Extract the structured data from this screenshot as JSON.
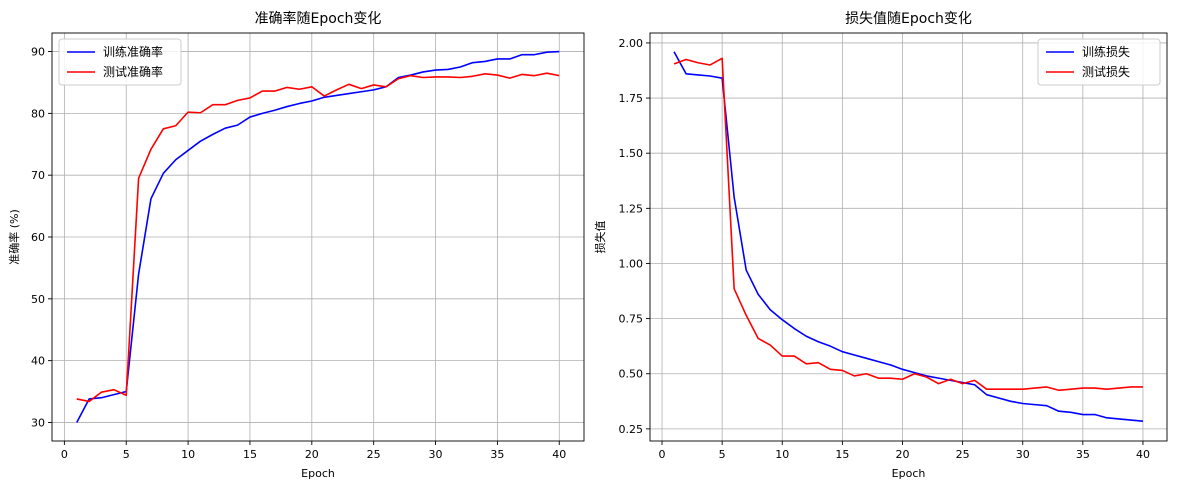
{
  "chart_data": [
    {
      "type": "line",
      "title": "准确率随Epoch变化",
      "xlabel": "Epoch",
      "ylabel": "准确率 (%)",
      "xlim": [
        -1,
        42
      ],
      "ylim": [
        27,
        93
      ],
      "xticks": [
        0,
        5,
        10,
        15,
        20,
        25,
        30,
        35,
        40
      ],
      "yticks": [
        30,
        40,
        50,
        60,
        70,
        80,
        90
      ],
      "grid": true,
      "legend_position": "top-left",
      "series": [
        {
          "name": "训练准确率",
          "color": "#0000ff",
          "x": [
            1,
            2,
            3,
            4,
            5,
            6,
            7,
            8,
            9,
            10,
            11,
            12,
            13,
            14,
            15,
            16,
            17,
            18,
            19,
            20,
            21,
            22,
            23,
            24,
            25,
            26,
            27,
            28,
            29,
            30,
            31,
            32,
            33,
            34,
            35,
            36,
            37,
            38,
            39,
            40
          ],
          "y": [
            30.0,
            33.8,
            34.0,
            34.5,
            35.0,
            54.0,
            66.2,
            70.3,
            72.5,
            74.0,
            75.5,
            76.6,
            77.6,
            78.1,
            79.4,
            80.0,
            80.5,
            81.1,
            81.6,
            82.0,
            82.6,
            82.9,
            83.2,
            83.5,
            83.8,
            84.3,
            85.8,
            86.2,
            86.7,
            87.0,
            87.1,
            87.5,
            88.2,
            88.4,
            88.8,
            88.8,
            89.5,
            89.5,
            89.9,
            90.0
          ]
        },
        {
          "name": "测试准确率",
          "color": "#ff0000",
          "x": [
            1,
            2,
            3,
            4,
            5,
            6,
            7,
            8,
            9,
            10,
            11,
            12,
            13,
            14,
            15,
            16,
            17,
            18,
            19,
            20,
            21,
            22,
            23,
            24,
            25,
            26,
            27,
            28,
            29,
            30,
            31,
            32,
            33,
            34,
            35,
            36,
            37,
            38,
            39,
            40
          ],
          "y": [
            33.8,
            33.4,
            34.9,
            35.3,
            34.4,
            69.5,
            74.2,
            77.5,
            78.0,
            80.2,
            80.1,
            81.4,
            81.4,
            82.1,
            82.5,
            83.6,
            83.6,
            84.2,
            83.9,
            84.3,
            82.8,
            83.8,
            84.7,
            84.0,
            84.6,
            84.3,
            85.6,
            86.1,
            85.8,
            85.9,
            85.9,
            85.8,
            86.0,
            86.4,
            86.2,
            85.7,
            86.3,
            86.1,
            86.5,
            86.1
          ]
        }
      ]
    },
    {
      "type": "line",
      "title": "损失值随Epoch变化",
      "xlabel": "Epoch",
      "ylabel": "损失值",
      "xlim": [
        -1,
        42
      ],
      "ylim": [
        0.195,
        2.045
      ],
      "xticks": [
        0,
        5,
        10,
        15,
        20,
        25,
        30,
        35,
        40
      ],
      "yticks": [
        0.25,
        0.5,
        0.75,
        1.0,
        1.25,
        1.5,
        1.75,
        2.0
      ],
      "ytick_labels": [
        "0.25",
        "0.50",
        "0.75",
        "1.00",
        "1.25",
        "1.50",
        "1.75",
        "2.00"
      ],
      "grid": true,
      "legend_position": "top-right",
      "series": [
        {
          "name": "训练损失",
          "color": "#0000ff",
          "x": [
            1,
            2,
            3,
            4,
            5,
            6,
            7,
            8,
            9,
            10,
            11,
            12,
            13,
            14,
            15,
            16,
            17,
            18,
            19,
            20,
            21,
            22,
            23,
            24,
            25,
            26,
            27,
            28,
            29,
            30,
            31,
            32,
            33,
            34,
            35,
            36,
            37,
            38,
            39,
            40
          ],
          "y": [
            1.96,
            1.86,
            1.855,
            1.85,
            1.84,
            1.3,
            0.97,
            0.86,
            0.79,
            0.745,
            0.705,
            0.67,
            0.645,
            0.625,
            0.6,
            0.585,
            0.57,
            0.555,
            0.54,
            0.52,
            0.505,
            0.49,
            0.48,
            0.47,
            0.46,
            0.45,
            0.405,
            0.39,
            0.375,
            0.365,
            0.36,
            0.355,
            0.33,
            0.325,
            0.315,
            0.315,
            0.3,
            0.295,
            0.29,
            0.285
          ]
        },
        {
          "name": "测试损失",
          "color": "#ff0000",
          "x": [
            1,
            2,
            3,
            4,
            5,
            6,
            7,
            8,
            9,
            10,
            11,
            12,
            13,
            14,
            15,
            16,
            17,
            18,
            19,
            20,
            21,
            22,
            23,
            24,
            25,
            26,
            27,
            28,
            29,
            30,
            31,
            32,
            33,
            34,
            35,
            36,
            37,
            38,
            39,
            40
          ],
          "y": [
            1.905,
            1.925,
            1.91,
            1.9,
            1.93,
            0.885,
            0.765,
            0.66,
            0.63,
            0.58,
            0.58,
            0.545,
            0.55,
            0.52,
            0.515,
            0.49,
            0.5,
            0.48,
            0.48,
            0.475,
            0.5,
            0.485,
            0.455,
            0.475,
            0.455,
            0.47,
            0.43,
            0.43,
            0.43,
            0.43,
            0.435,
            0.44,
            0.425,
            0.43,
            0.435,
            0.435,
            0.43,
            0.435,
            0.44,
            0.44
          ]
        }
      ]
    }
  ]
}
